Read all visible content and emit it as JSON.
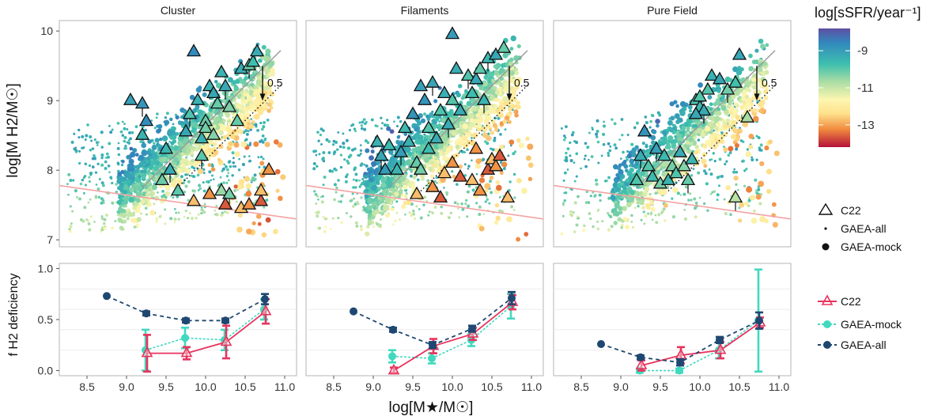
{
  "chart_data": {
    "type": "scatter",
    "panels": [
      {
        "title": "Cluster",
        "annotation": "0.5",
        "c22_points": [
          [
            9.05,
            9.0
          ],
          [
            9.2,
            8.95
          ],
          [
            9.25,
            8.7
          ],
          [
            9.2,
            8.5
          ],
          [
            9.5,
            8.3
          ],
          [
            9.55,
            8.0
          ],
          [
            9.45,
            7.85
          ],
          [
            9.65,
            7.7
          ],
          [
            9.75,
            8.55
          ],
          [
            9.8,
            8.8
          ],
          [
            9.9,
            9.0
          ],
          [
            9.95,
            8.45
          ],
          [
            10.0,
            8.7
          ],
          [
            10.05,
            9.2
          ],
          [
            10.1,
            9.1
          ],
          [
            10.15,
            8.95
          ],
          [
            10.2,
            9.4
          ],
          [
            10.25,
            9.2
          ],
          [
            10.3,
            8.9
          ],
          [
            10.4,
            8.7
          ],
          [
            10.45,
            9.45
          ],
          [
            10.55,
            9.5
          ],
          [
            10.6,
            9.55
          ],
          [
            10.65,
            9.7
          ],
          [
            10.0,
            8.6
          ],
          [
            9.95,
            8.2
          ],
          [
            9.85,
            9.7
          ],
          [
            10.1,
            8.5
          ],
          [
            10.2,
            7.7
          ],
          [
            10.3,
            7.65
          ]
        ],
        "c22_low": [
          [
            9.85,
            7.55
          ],
          [
            10.05,
            7.65
          ],
          [
            10.25,
            7.5
          ],
          [
            10.45,
            7.45
          ],
          [
            10.55,
            7.5
          ],
          [
            10.7,
            7.55
          ],
          [
            10.7,
            7.7
          ],
          [
            10.8,
            8.0
          ]
        ]
      },
      {
        "title": "Filaments",
        "annotation": "0.5",
        "c22_points": [
          [
            9.05,
            8.4
          ],
          [
            9.1,
            8.2
          ],
          [
            9.15,
            8.0
          ],
          [
            9.2,
            8.35
          ],
          [
            9.3,
            8.0
          ],
          [
            9.35,
            8.25
          ],
          [
            9.4,
            8.6
          ],
          [
            9.45,
            8.4
          ],
          [
            9.5,
            8.8
          ],
          [
            9.55,
            8.1
          ],
          [
            9.6,
            9.2
          ],
          [
            9.65,
            9.0
          ],
          [
            9.7,
            8.6
          ],
          [
            9.75,
            9.25
          ],
          [
            9.8,
            8.45
          ],
          [
            9.85,
            8.85
          ],
          [
            9.9,
            9.1
          ],
          [
            9.95,
            8.65
          ],
          [
            10.0,
            9.0
          ],
          [
            10.05,
            9.45
          ],
          [
            10.1,
            8.85
          ],
          [
            10.2,
            9.35
          ],
          [
            10.25,
            9.1
          ],
          [
            10.3,
            9.3
          ],
          [
            10.35,
            9.45
          ],
          [
            10.45,
            9.6
          ],
          [
            10.55,
            9.65
          ],
          [
            10.65,
            9.75
          ],
          [
            10.0,
            9.95
          ],
          [
            10.4,
            9.0
          ],
          [
            9.6,
            8.0
          ],
          [
            9.7,
            8.3
          ]
        ],
        "c22_low": [
          [
            9.55,
            7.65
          ],
          [
            9.75,
            7.75
          ],
          [
            9.85,
            7.6
          ],
          [
            9.9,
            7.95
          ],
          [
            10.0,
            8.1
          ],
          [
            10.1,
            7.9
          ],
          [
            10.25,
            7.85
          ],
          [
            10.35,
            7.7
          ],
          [
            10.45,
            8.0
          ],
          [
            10.5,
            8.15
          ],
          [
            10.55,
            8.05
          ],
          [
            10.6,
            8.2
          ],
          [
            10.7,
            7.6
          ],
          [
            10.3,
            8.3
          ]
        ]
      },
      {
        "title": "Pure Field",
        "annotation": "0.5",
        "c22_points": [
          [
            9.2,
            7.85
          ],
          [
            9.25,
            8.2
          ],
          [
            9.3,
            8.55
          ],
          [
            9.35,
            8.05
          ],
          [
            9.4,
            7.9
          ],
          [
            9.45,
            8.3
          ],
          [
            9.5,
            7.8
          ],
          [
            9.55,
            8.2
          ],
          [
            9.6,
            7.85
          ],
          [
            9.65,
            8.05
          ],
          [
            9.7,
            7.95
          ],
          [
            9.75,
            8.25
          ],
          [
            9.8,
            8.05
          ],
          [
            9.85,
            7.85
          ],
          [
            9.9,
            8.15
          ],
          [
            9.95,
            9.0
          ],
          [
            10.0,
            8.9
          ],
          [
            10.05,
            8.85
          ],
          [
            10.1,
            9.15
          ],
          [
            10.15,
            9.35
          ],
          [
            10.25,
            9.3
          ],
          [
            10.35,
            9.15
          ],
          [
            10.45,
            9.25
          ],
          [
            10.5,
            9.65
          ],
          [
            10.6,
            8.75
          ],
          [
            10.45,
            7.6
          ],
          [
            9.95,
            8.8
          ],
          [
            10.0,
            9.05
          ]
        ],
        "c22_low": []
      }
    ],
    "bottom": [
      {
        "title": "Cluster",
        "series": [
          {
            "name": "GAEA-all",
            "x": [
              8.75,
              9.25,
              9.75,
              10.25,
              10.75
            ],
            "y": [
              0.73,
              0.56,
              0.49,
              0.49,
              0.7
            ],
            "err": [
              0,
              0.02,
              0.02,
              0.02,
              0.05
            ]
          },
          {
            "name": "GAEA-mock",
            "x": [
              9.25,
              9.75,
              10.25,
              10.75
            ],
            "y": [
              0.2,
              0.32,
              0.3,
              0.6
            ],
            "err": [
              0.2,
              0.1,
              0.1,
              0.1
            ]
          },
          {
            "name": "C22",
            "x": [
              9.25,
              9.75,
              10.25,
              10.75
            ],
            "y": [
              0.17,
              0.17,
              0.28,
              0.58
            ],
            "err": [
              0.18,
              0.06,
              0.16,
              0.12
            ]
          }
        ]
      },
      {
        "title": "Filaments",
        "series": [
          {
            "name": "GAEA-all",
            "x": [
              8.75,
              9.25,
              9.75,
              10.25,
              10.75
            ],
            "y": [
              0.58,
              0.4,
              0.25,
              0.41,
              0.71
            ],
            "err": [
              0,
              0.02,
              0.03,
              0.03,
              0.06
            ]
          },
          {
            "name": "GAEA-mock",
            "x": [
              9.25,
              9.75,
              10.25,
              10.75
            ],
            "y": [
              0.14,
              0.12,
              0.3,
              0.63
            ],
            "err": [
              0.06,
              0.05,
              0.06,
              0.12
            ]
          },
          {
            "name": "C22",
            "x": [
              9.25,
              9.75,
              10.25,
              10.75
            ],
            "y": [
              0.0,
              0.24,
              0.36,
              0.67
            ],
            "err": [
              0.03,
              0.07,
              0.06,
              0.07
            ]
          }
        ]
      },
      {
        "title": "Pure Field",
        "series": [
          {
            "name": "GAEA-all",
            "x": [
              8.75,
              9.25,
              9.75,
              10.25,
              10.75
            ],
            "y": [
              0.26,
              0.13,
              0.08,
              0.3,
              0.49
            ],
            "err": [
              0,
              0.02,
              0.03,
              0.03,
              0.08
            ]
          },
          {
            "name": "GAEA-mock",
            "x": [
              9.25,
              9.75,
              10.25,
              10.75
            ],
            "y": [
              0.0,
              0.0,
              0.2,
              0.49
            ],
            "err": [
              0.02,
              0.02,
              0.08,
              0.5
            ]
          },
          {
            "name": "C22",
            "x": [
              9.25,
              9.75,
              10.25,
              10.75
            ],
            "y": [
              0.05,
              0.15,
              0.2,
              0.47
            ],
            "err": [
              0.05,
              0.08,
              0.08,
              0.05
            ]
          }
        ]
      }
    ],
    "top_xlim": [
      8.15,
      11.15
    ],
    "top_ylim": [
      6.9,
      10.15
    ],
    "bottom_ylim": [
      -0.05,
      1.05
    ],
    "xticks": [
      8.5,
      9.0,
      9.5,
      10.0,
      10.5,
      11.0
    ],
    "xtick_labels": [
      "8.5",
      "9.0",
      "9.5",
      "10.0",
      "10.5",
      "11.0"
    ],
    "top_yticks": [
      7,
      8,
      9,
      10
    ],
    "top_ytick_labels": [
      "7",
      "8",
      "9",
      "10"
    ],
    "bottom_yticks": [
      0.0,
      0.5,
      1.0
    ],
    "bottom_ytick_labels": [
      "0.0",
      "0.5",
      "1.0"
    ],
    "xlabel": "log[M★/M☉]",
    "top_ylabel": "log[M H2/M☉]",
    "bottom_ylabel": "f H2 deficiency",
    "colorbar": {
      "title": "log[sSFR/year⁻¹]",
      "ticks": [
        -9,
        -11,
        -13
      ],
      "tick_labels": [
        "-9",
        "-11",
        "-13"
      ],
      "range": [
        -14.2,
        -7.8
      ]
    },
    "legend_top": [
      "C22",
      "GAEA-all",
      "GAEA-mock"
    ],
    "legend_bottom": [
      "C22",
      "GAEA-mock",
      "GAEA-all"
    ]
  },
  "colors": {
    "c22": "#e8335d",
    "mock": "#40d9bf",
    "all": "#1e4872",
    "threshold": "#f4a3a3",
    "line": "#999999"
  }
}
